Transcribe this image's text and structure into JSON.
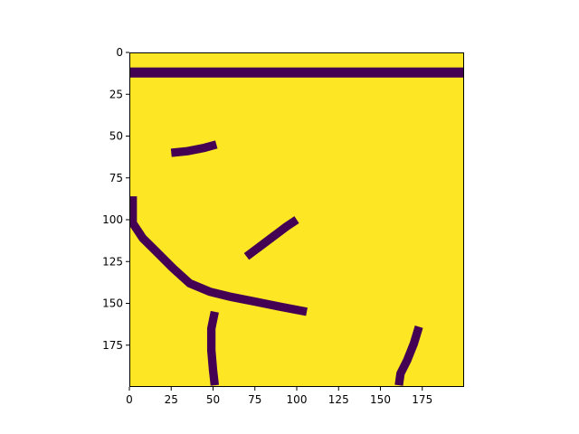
{
  "chart_data": {
    "type": "heatmap",
    "title": "",
    "xlabel": "",
    "ylabel": "",
    "xlim": [
      0,
      200
    ],
    "ylim": [
      200,
      0
    ],
    "x_ticks": [
      0,
      25,
      50,
      75,
      100,
      125,
      150,
      175
    ],
    "y_ticks": [
      0,
      25,
      50,
      75,
      100,
      125,
      150,
      175
    ],
    "x_tick_labels": [
      "0",
      "25",
      "50",
      "75",
      "100",
      "125",
      "150",
      "175"
    ],
    "y_tick_labels": [
      "0",
      "25",
      "50",
      "75",
      "100",
      "125",
      "150",
      "175"
    ],
    "colormap": "viridis",
    "background_color": "#fde725",
    "stroke_color": "#440154",
    "background_value": 1,
    "stroke_value": 0,
    "strokes": [
      {
        "points": [
          [
            0,
            12
          ],
          [
            200,
            12
          ]
        ],
        "width": 6
      },
      {
        "points": [
          [
            25,
            60
          ],
          [
            35,
            59
          ],
          [
            45,
            57
          ],
          [
            52,
            55
          ]
        ],
        "width": 5
      },
      {
        "points": [
          [
            70,
            122
          ],
          [
            78,
            116
          ],
          [
            86,
            110
          ],
          [
            94,
            104
          ],
          [
            100,
            100
          ]
        ],
        "width": 5
      },
      {
        "points": [
          [
            2,
            86
          ],
          [
            2,
            102
          ],
          [
            8,
            111
          ],
          [
            16,
            119
          ],
          [
            26,
            129
          ],
          [
            36,
            138
          ],
          [
            48,
            143
          ],
          [
            60,
            146
          ],
          [
            75,
            149
          ],
          [
            90,
            152
          ],
          [
            106,
            155
          ]
        ],
        "width": 5
      },
      {
        "points": [
          [
            51,
            155
          ],
          [
            49,
            165
          ],
          [
            49,
            178
          ],
          [
            50,
            190
          ],
          [
            51,
            199
          ]
        ],
        "width": 5
      },
      {
        "points": [
          [
            173,
            164
          ],
          [
            170,
            174
          ],
          [
            166,
            184
          ],
          [
            162,
            192
          ],
          [
            161,
            199
          ]
        ],
        "width": 5
      }
    ]
  }
}
